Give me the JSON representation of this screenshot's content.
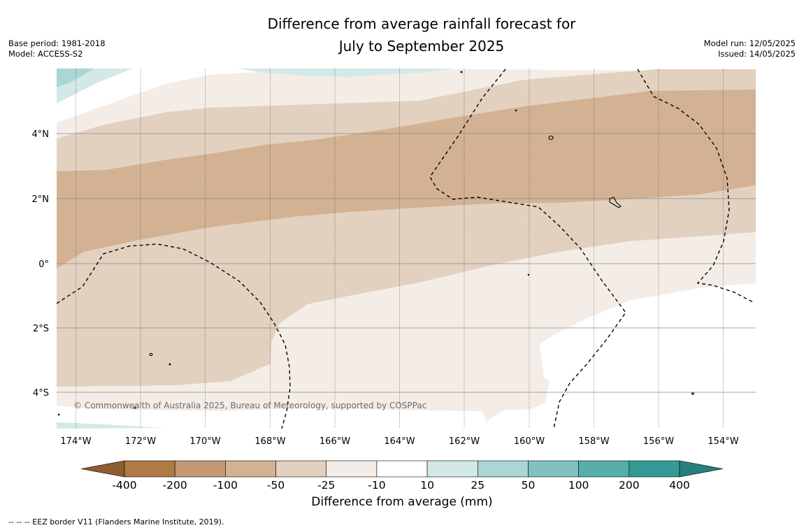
{
  "title": {
    "line1": "Difference from average rainfall forecast for",
    "line2": "July to September 2025"
  },
  "meta": {
    "base_period": "Base period: 1981-2018",
    "model": "Model: ACCESS-S2",
    "model_run": "Model run: 12/05/2025",
    "issued": "Issued: 14/05/2025"
  },
  "map": {
    "lon_ticks": [
      "174°W",
      "172°W",
      "170°W",
      "168°W",
      "166°W",
      "164°W",
      "162°W",
      "160°W",
      "158°W",
      "156°W",
      "154°W"
    ],
    "lat_ticks": [
      "4°N",
      "2°N",
      "0°",
      "2°S",
      "4°S"
    ],
    "copyright": "© Commonwealth of Australia 2025, Bureau of Meteorology, supported by COSPPac"
  },
  "colorbar": {
    "title": "Difference from average (mm)",
    "labels": [
      "-400",
      "-200",
      "-100",
      "-50",
      "-25",
      "-10",
      "10",
      "25",
      "50",
      "100",
      "200",
      "400"
    ],
    "colors": [
      "#b07a45",
      "#c49873",
      "#d3b293",
      "#e3d1c0",
      "#f4ede7",
      "#ffffff",
      "#d3e9e8",
      "#aad6d5",
      "#7fc2c0",
      "#58aeab",
      "#339a96"
    ],
    "under_color": "#8d5c2f",
    "over_color": "#25807c"
  },
  "legend_note": "--  --  -- EEZ border V11 (Flanders Marine Institute, 2019)."
}
